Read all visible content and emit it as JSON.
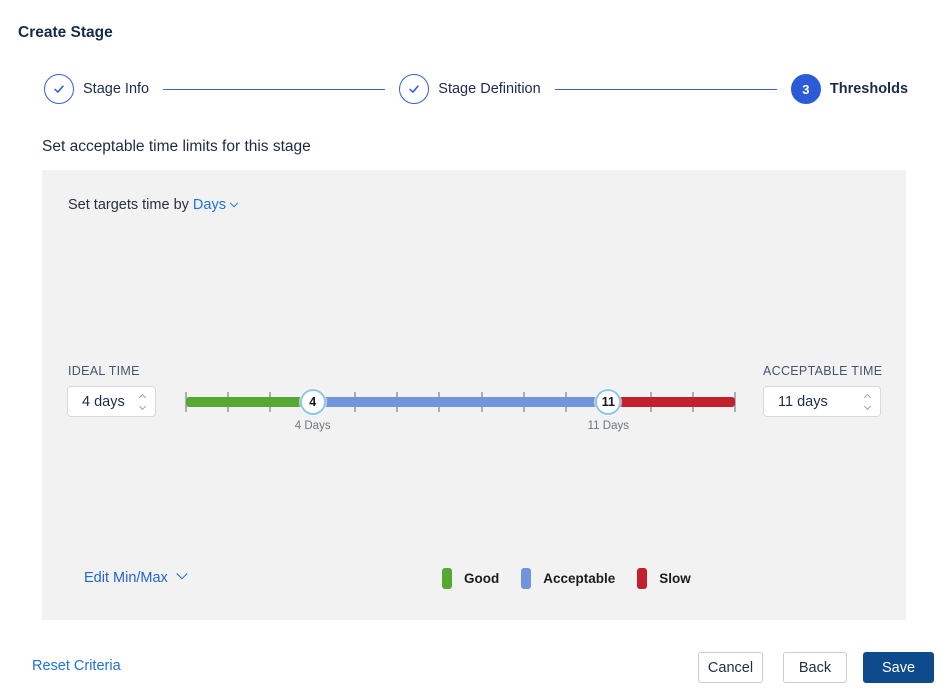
{
  "page": {
    "title": "Create Stage"
  },
  "stepper": {
    "steps": [
      {
        "label": "Stage Info",
        "state": "complete"
      },
      {
        "label": "Stage Definition",
        "state": "complete"
      },
      {
        "label": "Thresholds",
        "state": "current",
        "number": "3"
      }
    ],
    "accent_color": "#3461D9"
  },
  "section": {
    "heading": "Set acceptable time limits for this stage"
  },
  "targets": {
    "prefix": "Set targets time by",
    "unit": "Days"
  },
  "ideal": {
    "label": "IDEAL TIME",
    "value": "4 days"
  },
  "acceptable": {
    "label": "ACCEPTABLE TIME",
    "value": "11 days"
  },
  "slider": {
    "min_days": 1,
    "max_days": 14,
    "ideal_days": 4,
    "acceptable_days": 11,
    "handle1": "4",
    "handle2": "11",
    "handle1_label": "4 Days",
    "handle2_label": "11 Days",
    "colors": {
      "good": "#55A933",
      "acceptable": "#7195DB",
      "slow": "#C2202E"
    }
  },
  "edit_minmax": {
    "label": "Edit Min/Max"
  },
  "legend": [
    {
      "label": "Good",
      "color": "#55A933"
    },
    {
      "label": "Acceptable",
      "color": "#7195DB"
    },
    {
      "label": "Slow",
      "color": "#C2202E"
    }
  ],
  "footer": {
    "reset": "Reset Criteria",
    "cancel": "Cancel",
    "back": "Back",
    "save": "Save"
  }
}
